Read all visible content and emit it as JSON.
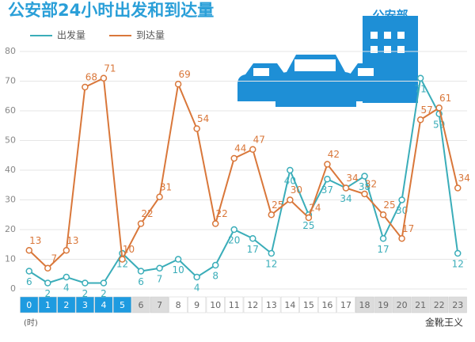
{
  "chart_data": {
    "type": "line",
    "title": "公安部24小时出发和到达量",
    "categories": [
      "0",
      "1",
      "2",
      "3",
      "4",
      "5",
      "6",
      "7",
      "8",
      "9",
      "10",
      "11",
      "12",
      "13",
      "14",
      "15",
      "16",
      "17",
      "18",
      "19",
      "20",
      "21",
      "22",
      "23"
    ],
    "category_colors": [
      "#1e9be0",
      "#1e9be0",
      "#1e9be0",
      "#1e9be0",
      "#1e9be0",
      "#1e9be0",
      "#dcdcdc",
      "#dcdcdc",
      "#ffffff",
      "#ffffff",
      "#ffffff",
      "#ffffff",
      "#ffffff",
      "#ffffff",
      "#ffffff",
      "#ffffff",
      "#ffffff",
      "#ffffff",
      "#dcdcdc",
      "#dcdcdc",
      "#dcdcdc",
      "#dcdcdc",
      "#dcdcdc",
      "#dcdcdc"
    ],
    "x_label": "(时)",
    "series": [
      {
        "name": "出发量",
        "color": "#3aadb9",
        "values": [
          6,
          2,
          4,
          2,
          2,
          12,
          6,
          7,
          10,
          4,
          8,
          20,
          17,
          12,
          40,
          25,
          37,
          34,
          38,
          17,
          30,
          71,
          59,
          12
        ]
      },
      {
        "name": "到达量",
        "color": "#d9773a",
        "values": [
          13,
          7,
          13,
          68,
          71,
          10,
          22,
          31,
          69,
          54,
          22,
          44,
          47,
          25,
          30,
          24,
          42,
          34,
          32,
          25,
          17,
          57,
          61,
          34
        ]
      }
    ],
    "ylim": [
      0,
      80
    ],
    "yticks": [
      0,
      10,
      20,
      30,
      40,
      50,
      60,
      70,
      80
    ],
    "grid": true
  },
  "illustration": {
    "label": "公安部"
  },
  "watermark": "金靴王义"
}
